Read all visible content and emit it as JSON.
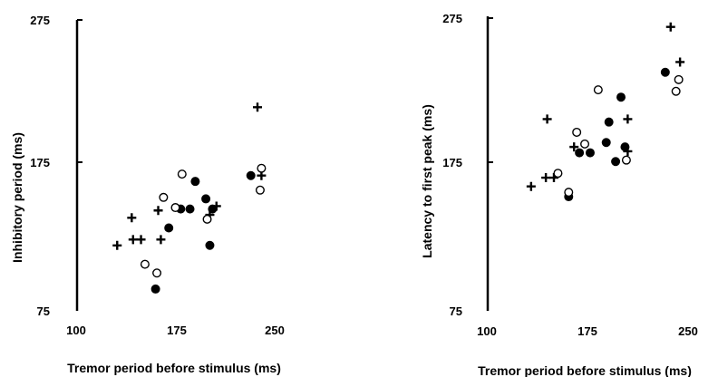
{
  "chart_data": [
    {
      "type": "scatter",
      "xlabel": "Tremor period before stimulus (ms)",
      "ylabel": "Inhibitory period (ms)",
      "xlim": [
        100,
        250
      ],
      "ylim": [
        75,
        275
      ],
      "xticks": [
        "100",
        "175",
        "250"
      ],
      "yticks": [
        "75",
        "175",
        "275"
      ],
      "grid": false,
      "series": [
        {
          "marker": "plus",
          "points": [
            [
              131,
              120
            ],
            [
              142,
              139
            ],
            [
              143,
              124
            ],
            [
              149,
              124
            ],
            [
              164,
              124
            ],
            [
              162,
              144
            ],
            [
              206,
              147
            ],
            [
              201,
              141
            ],
            [
              237,
              215
            ],
            [
              240,
              168
            ]
          ]
        },
        {
          "marker": "filled-circle",
          "points": [
            [
              160,
              90
            ],
            [
              170,
              132
            ],
            [
              179,
              145
            ],
            [
              186,
              145
            ],
            [
              190,
              164
            ],
            [
              198,
              152
            ],
            [
              201,
              120
            ],
            [
              203,
              145
            ],
            [
              232,
              168
            ]
          ]
        },
        {
          "marker": "open-circle",
          "points": [
            [
              152,
              107
            ],
            [
              161,
              101
            ],
            [
              166,
              153
            ],
            [
              175,
              146
            ],
            [
              180,
              169
            ],
            [
              199,
              138
            ],
            [
              239,
              158
            ],
            [
              240,
              173
            ]
          ]
        }
      ]
    },
    {
      "type": "scatter",
      "xlabel": "Tremor period before stimulus (ms)",
      "ylabel": "Latency to first peak (ms)",
      "xlim": [
        100,
        250
      ],
      "ylim": [
        75,
        275
      ],
      "xticks": [
        "100",
        "175",
        "250"
      ],
      "yticks": [
        "75",
        "175",
        "275"
      ],
      "grid": false,
      "series": [
        {
          "marker": "plus",
          "points": [
            [
              133,
              160
            ],
            [
              144,
              166
            ],
            [
              150,
              166
            ],
            [
              145,
              206
            ],
            [
              165,
              187
            ],
            [
              205,
              184
            ],
            [
              205,
              206
            ],
            [
              237,
              269
            ],
            [
              244,
              245
            ]
          ]
        },
        {
          "marker": "filled-circle",
          "points": [
            [
              161,
              153
            ],
            [
              169,
              183
            ],
            [
              177,
              183
            ],
            [
              189,
              190
            ],
            [
              191,
              204
            ],
            [
              196,
              177
            ],
            [
              200,
              221
            ],
            [
              203,
              187
            ],
            [
              233,
              238
            ]
          ]
        },
        {
          "marker": "open-circle",
          "points": [
            [
              153,
              169
            ],
            [
              161,
              156
            ],
            [
              167,
              197
            ],
            [
              173,
              189
            ],
            [
              183,
              226
            ],
            [
              204,
              178
            ],
            [
              241,
              225
            ],
            [
              243,
              233
            ]
          ]
        }
      ]
    }
  ]
}
